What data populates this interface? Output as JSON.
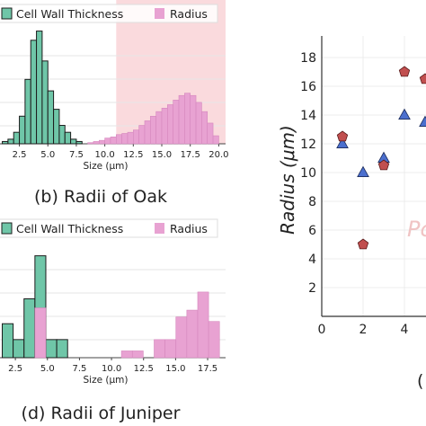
{
  "colors": {
    "cell_wall": "#6fc6a8",
    "radius": "#e8a2d2",
    "band": "#fadadd",
    "triangle": "#4b6fce",
    "pentagon": "#c14f4f"
  },
  "chart_data": [
    {
      "type": "bar",
      "panel": "oak",
      "caption": "(b) Radii of Oak",
      "xlabel": "Size (μm)",
      "xlim": [
        0.8,
        20.6
      ],
      "ylim": [
        0,
        1
      ],
      "xticks": [
        "2.5",
        "5.0",
        "7.5",
        "10.0",
        "12.5",
        "15.0",
        "17.5",
        "20.0"
      ],
      "highlight_band": [
        11.0,
        20.6
      ],
      "bin_width": 0.5,
      "legend": [
        "Cell Wall Thickness",
        "Radius"
      ],
      "series": [
        {
          "name": "Cell Wall Thickness",
          "x": [
            1.25,
            1.75,
            2.25,
            2.75,
            3.25,
            3.75,
            4.25,
            4.75,
            5.25,
            5.75,
            6.25,
            6.75,
            7.25,
            7.75
          ],
          "values": [
            0.02,
            0.04,
            0.1,
            0.24,
            0.56,
            0.9,
            0.98,
            0.72,
            0.46,
            0.3,
            0.16,
            0.1,
            0.04,
            0.02
          ]
        },
        {
          "name": "Radius",
          "x": [
            8.75,
            9.25,
            9.75,
            10.25,
            10.75,
            11.25,
            11.75,
            12.25,
            12.75,
            13.25,
            13.75,
            14.25,
            14.75,
            15.25,
            15.75,
            16.25,
            16.75,
            17.25,
            17.75,
            18.25,
            18.75,
            19.25,
            19.75
          ],
          "values": [
            0.01,
            0.02,
            0.03,
            0.05,
            0.06,
            0.08,
            0.09,
            0.1,
            0.12,
            0.16,
            0.2,
            0.24,
            0.28,
            0.31,
            0.34,
            0.38,
            0.42,
            0.44,
            0.42,
            0.36,
            0.28,
            0.18,
            0.07
          ]
        }
      ]
    },
    {
      "type": "bar",
      "panel": "juniper",
      "caption": "(d) Radii of Juniper",
      "xlabel": "Size (μm)",
      "xlim": [
        1.3,
        18.9
      ],
      "ylim": [
        0,
        1
      ],
      "xticks": [
        "2.5",
        "5.0",
        "7.5",
        "10.0",
        "12.5",
        "15.0",
        "17.5"
      ],
      "bin_width": 0.85,
      "legend": [
        "Cell Wall Thickness",
        "Radius"
      ],
      "series": [
        {
          "name": "Cell Wall Thickness",
          "x": [
            1.9,
            2.75,
            3.6,
            4.45,
            5.3,
            6.15
          ],
          "values": [
            0.3,
            0.16,
            0.52,
            0.9,
            0.16,
            0.16
          ]
        },
        {
          "name": "Radius",
          "x": [
            4.45,
            11.2,
            12.05,
            13.75,
            14.6,
            15.45,
            16.3,
            17.15,
            18.0
          ],
          "values": [
            0.44,
            0.06,
            0.06,
            0.16,
            0.16,
            0.36,
            0.42,
            0.58,
            0.32
          ]
        }
      ]
    },
    {
      "type": "scatter",
      "panel": "radius-scatter",
      "ylabel": "Radius (μm)",
      "xlim": [
        0,
        5.8
      ],
      "ylim": [
        0,
        19.5
      ],
      "xticks": [
        "0",
        "2",
        "4"
      ],
      "yticks": [
        "2",
        "4",
        "6",
        "8",
        "10",
        "12",
        "14",
        "16",
        "18"
      ],
      "annotation": "Pc",
      "footnote": "(",
      "series": [
        {
          "marker": "triangle",
          "x": [
            1,
            2,
            3,
            4,
            5
          ],
          "y": [
            12,
            10,
            11,
            14,
            13.5
          ]
        },
        {
          "marker": "pentagon",
          "x": [
            1,
            2,
            3,
            4,
            5
          ],
          "y": [
            12.5,
            5,
            10.5,
            17,
            16.5
          ]
        }
      ]
    }
  ]
}
